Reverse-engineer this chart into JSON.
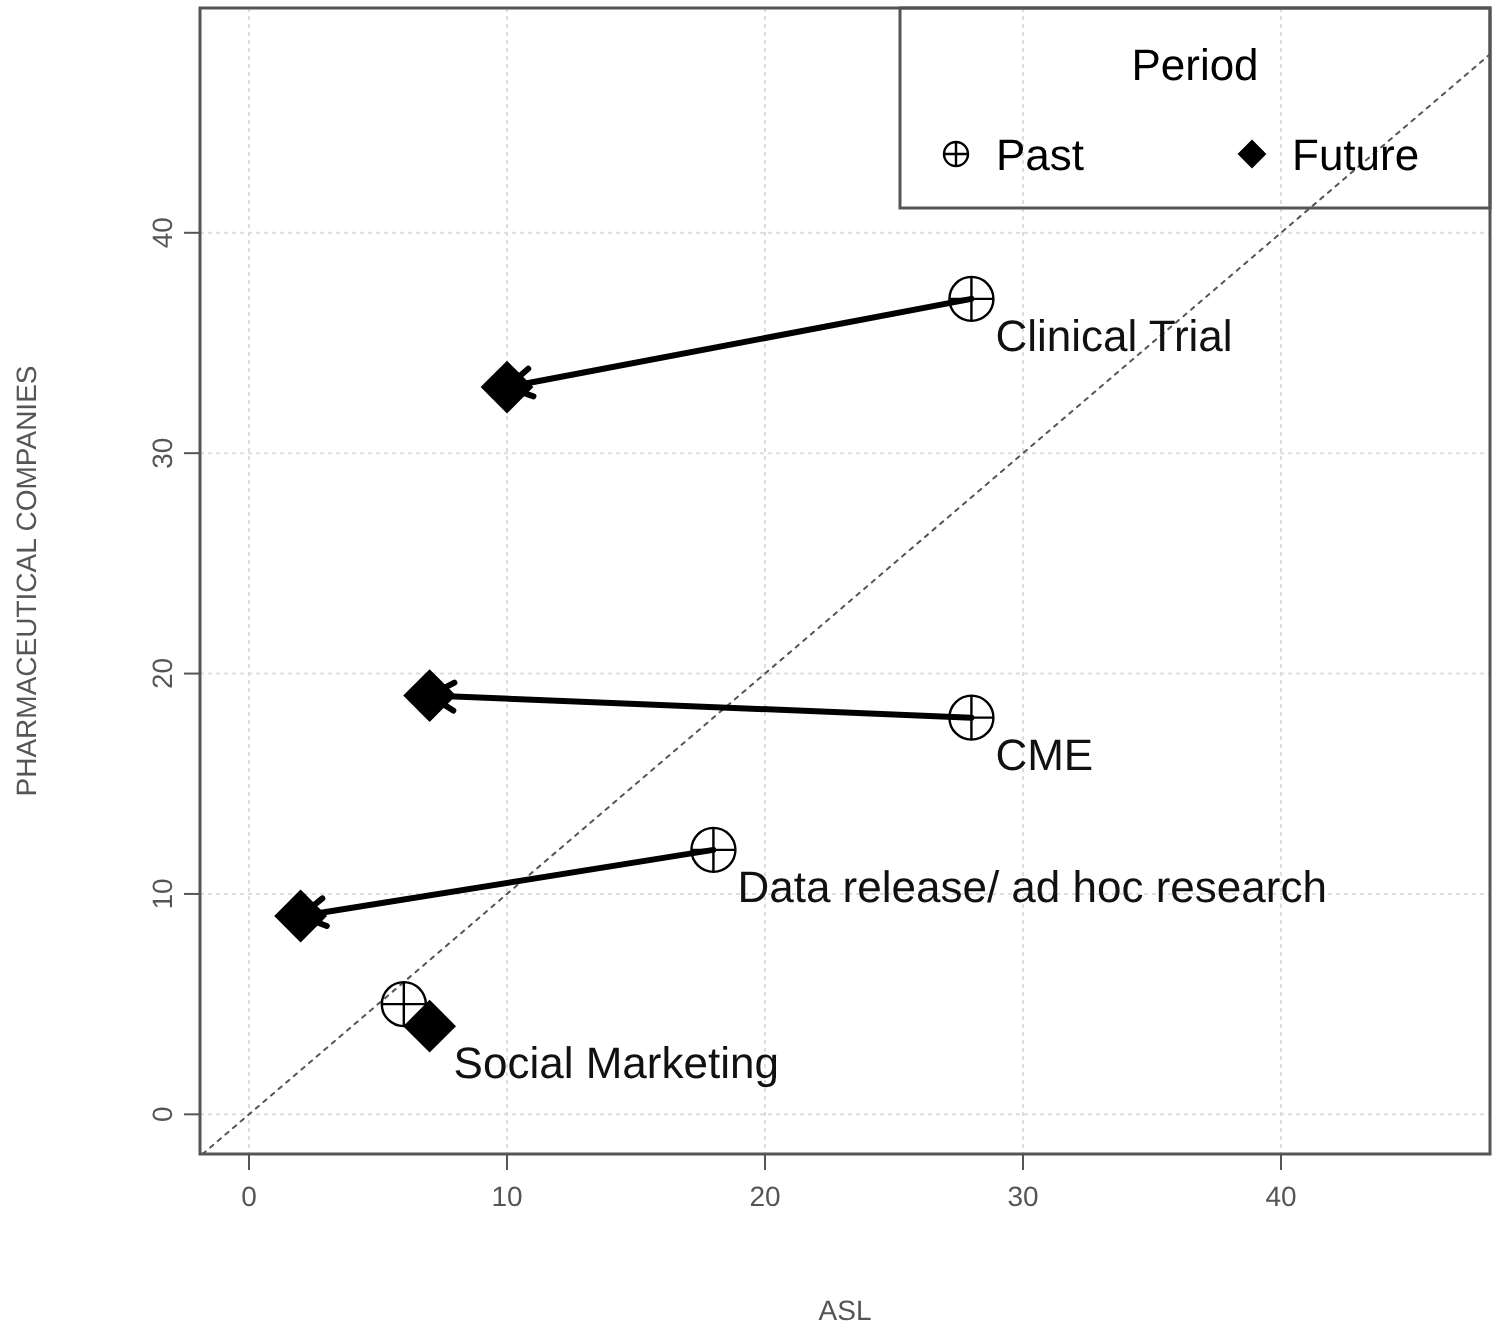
{
  "chart_data": {
    "type": "scatter",
    "xlabel": "ASL",
    "ylabel": "PHARMACEUTICAL COMPANIES",
    "legend_title": "Period",
    "legend": "top right",
    "grid": true,
    "xlim": [
      -1.9,
      48.1
    ],
    "ylim": [
      -1.8,
      50.2
    ],
    "xticks": [
      0,
      10,
      20,
      30,
      40
    ],
    "yticks": [
      0,
      10,
      20,
      30,
      40
    ],
    "series": [
      {
        "type": "line",
        "color": "#555555",
        "line_style": "dotted",
        "x": [
          -1.8,
          48.1
        ],
        "values": [
          -1.8,
          48.1
        ]
      },
      {
        "name": "Past",
        "color": "#000000",
        "marker": "circle",
        "x": [
          28,
          28,
          18,
          6
        ],
        "values": [
          37,
          18,
          12,
          5
        ]
      },
      {
        "name": "Future",
        "color": "#000000",
        "marker": "diamond",
        "x": [
          10,
          7,
          2,
          7
        ],
        "values": [
          33,
          19,
          9,
          4
        ]
      }
    ],
    "annotations": [
      {
        "text": "Clinical Trial",
        "x": 28,
        "y": 37
      },
      {
        "text": "CME",
        "x": 28,
        "y": 18
      },
      {
        "text": "Data release/ ad hoc research",
        "x": 18,
        "y": 12
      },
      {
        "text": "Social Marketing",
        "x": 7,
        "y": 4
      }
    ]
  }
}
